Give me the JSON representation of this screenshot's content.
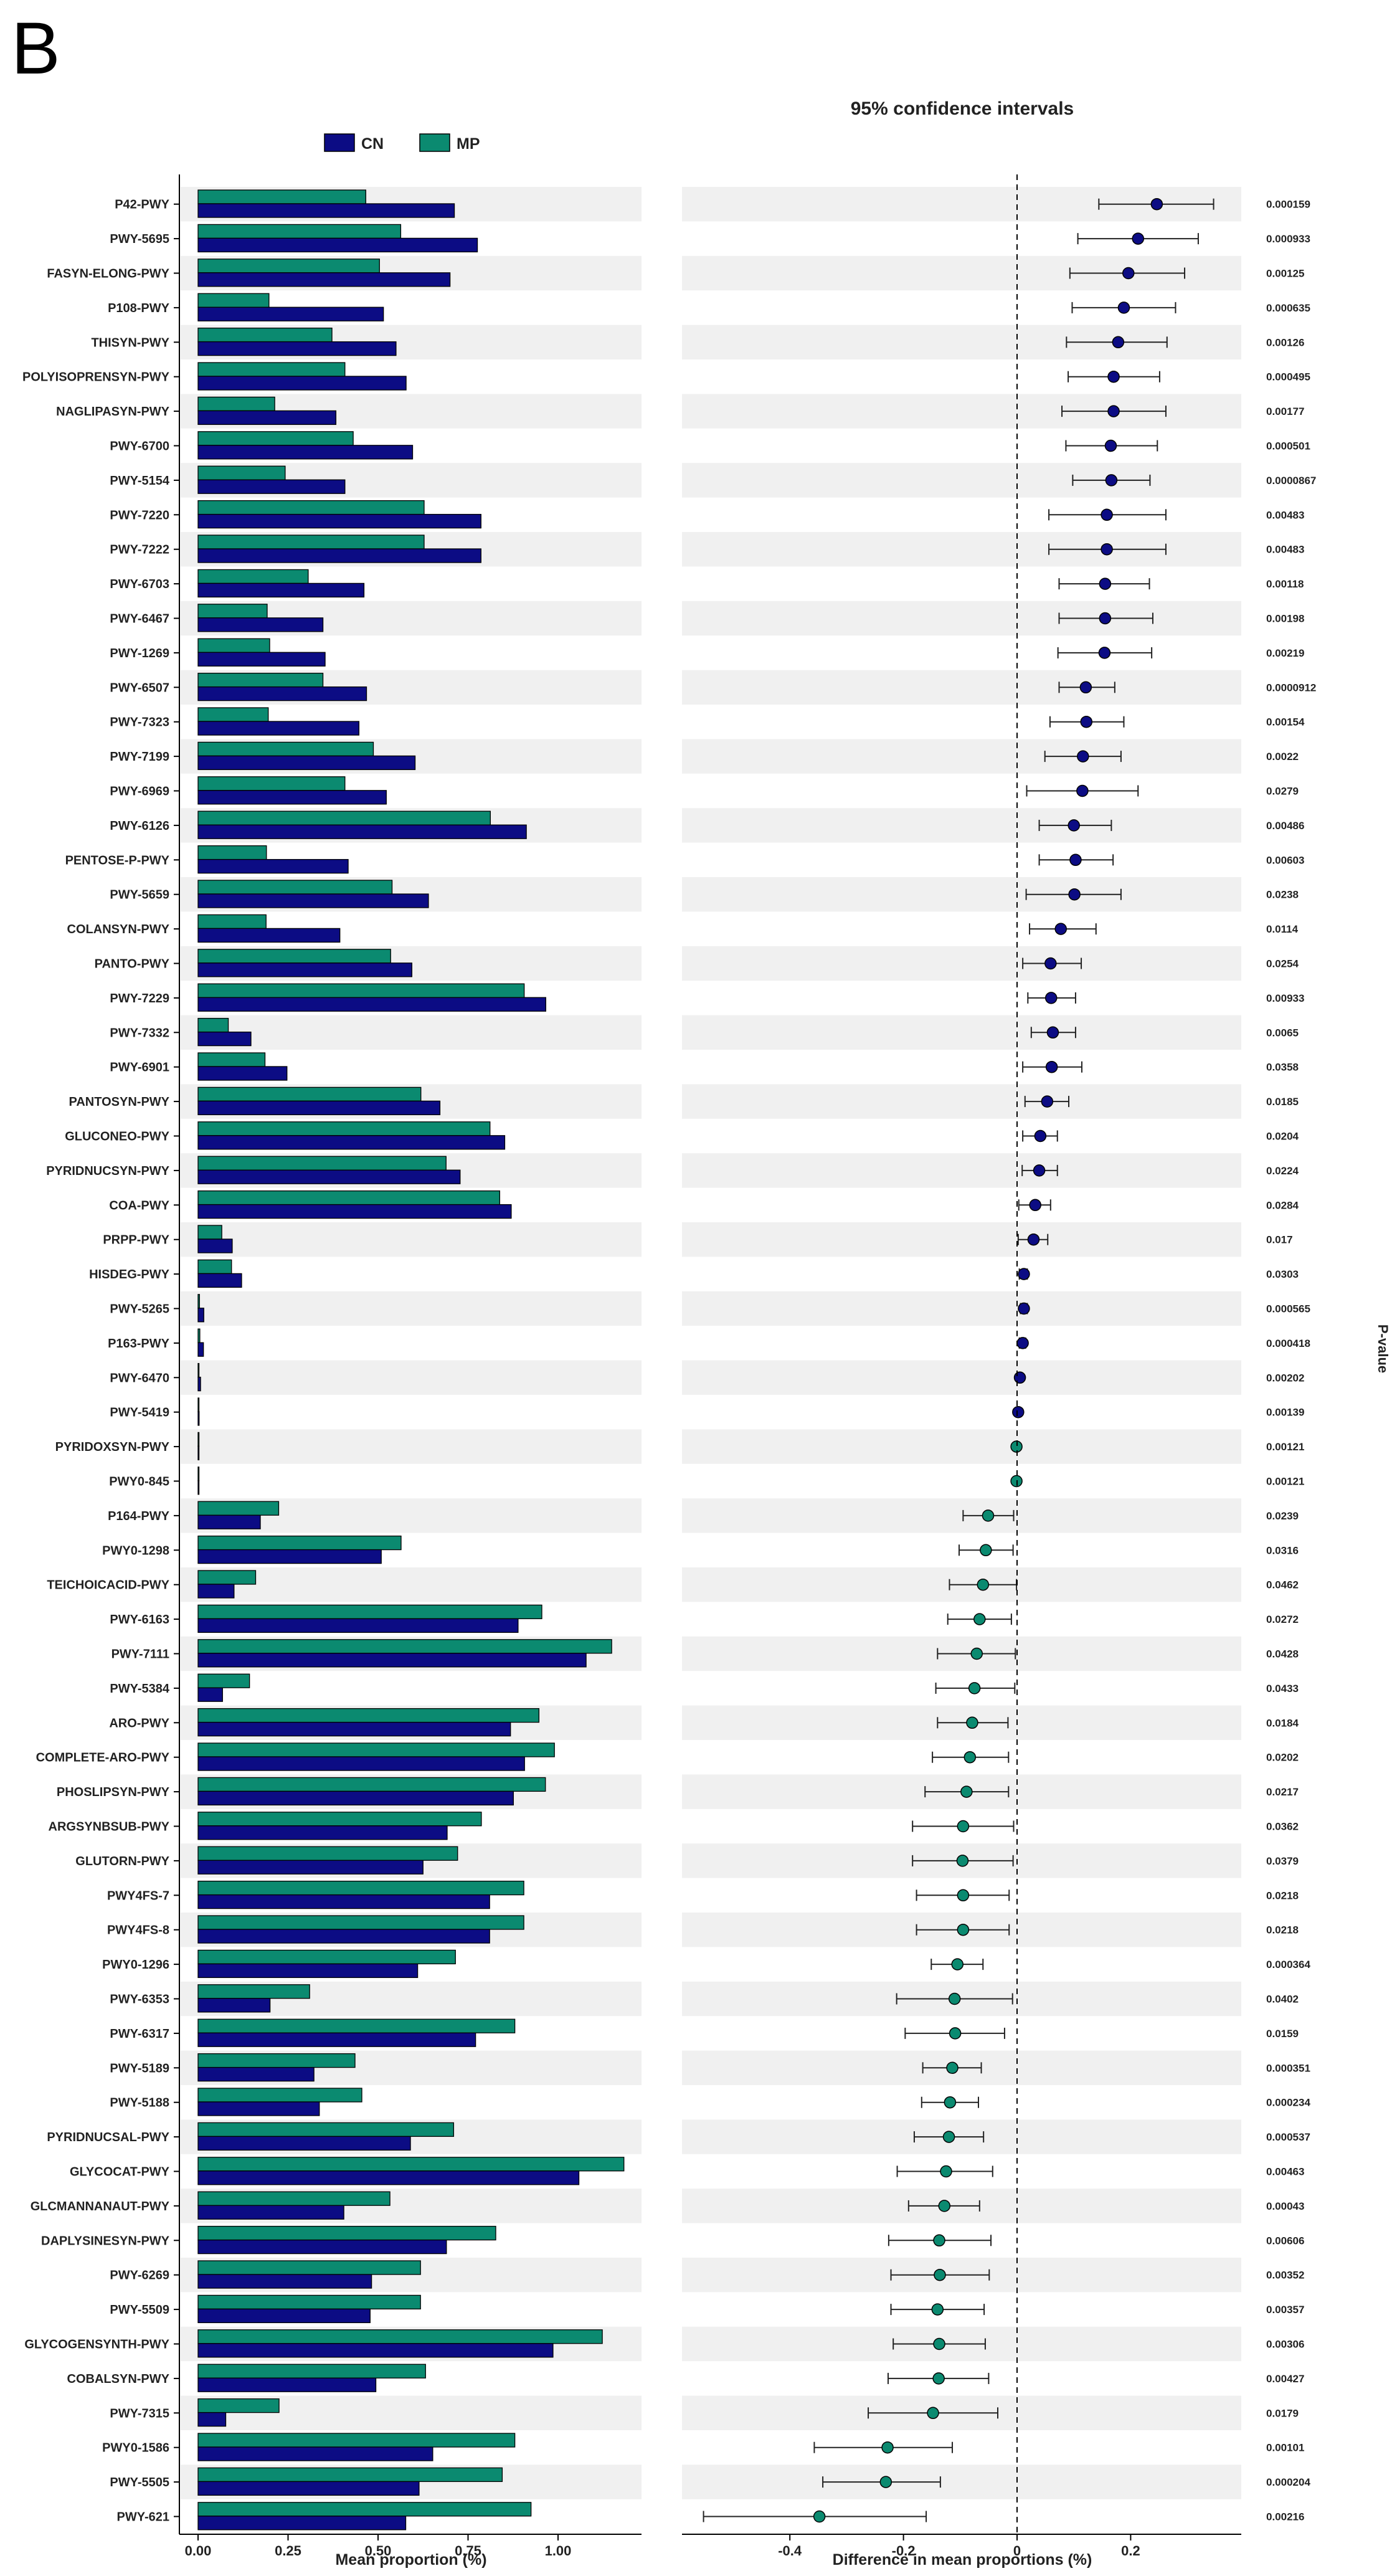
{
  "panel_letter": "B",
  "chart_data": [
    {
      "type": "bar",
      "orientation": "horizontal",
      "title": "",
      "xlabel": "Mean proportion (%)",
      "ylabel": "",
      "xlim": [
        0,
        1.2
      ],
      "xticks": [
        "0.00",
        "0.25",
        "0.50",
        "0.75",
        "1.00"
      ],
      "legend": {
        "position": "top",
        "entries": [
          {
            "name": "CN",
            "color": "#0c0c84"
          },
          {
            "name": "MP",
            "color": "#0b8a70"
          }
        ]
      },
      "categories": [
        "P42-PWY",
        "PWY-5695",
        "FASYN-ELONG-PWY",
        "P108-PWY",
        "THISYN-PWY",
        "POLYISOPRENSYN-PWY",
        "NAGLIPASYN-PWY",
        "PWY-6700",
        "PWY-5154",
        "PWY-7220",
        "PWY-7222",
        "PWY-6703",
        "PWY-6467",
        "PWY-1269",
        "PWY-6507",
        "PWY-7323",
        "PWY-7199",
        "PWY-6969",
        "PWY-6126",
        "PENTOSE-P-PWY",
        "PWY-5659",
        "COLANSYN-PWY",
        "PANTO-PWY",
        "PWY-7229",
        "PWY-7332",
        "PWY-6901",
        "PANTOSYN-PWY",
        "GLUCONEO-PWY",
        "PYRIDNUCSYN-PWY",
        "COA-PWY",
        "PRPP-PWY",
        "HISDEG-PWY",
        "PWY-5265",
        "P163-PWY",
        "PWY-6470",
        "PWY-5419",
        "PYRIDOXSYN-PWY",
        "PWY0-845",
        "P164-PWY",
        "PWY0-1298",
        "TEICHOICACID-PWY",
        "PWY-6163",
        "PWY-7111",
        "PWY-5384",
        "ARO-PWY",
        "COMPLETE-ARO-PWY",
        "PHOSLIPSYN-PWY",
        "ARGSYNBSUB-PWY",
        "GLUTORN-PWY",
        "PWY4FS-7",
        "PWY4FS-8",
        "PWY0-1296",
        "PWY-6353",
        "PWY-6317",
        "PWY-5189",
        "PWY-5188",
        "PYRIDNUCSAL-PWY",
        "GLYCOCAT-PWY",
        "GLCMANNANAUT-PWY",
        "DAPLYSINESYN-PWY",
        "PWY-6269",
        "PWY-5509",
        "GLYCOGENSYNTH-PWY",
        "COBALSYN-PWY",
        "PWY-7315",
        "PWY0-1586",
        "PWY-5505",
        "PWY-621"
      ],
      "series": [
        {
          "name": "MP",
          "color": "#0b8a70",
          "values": [
            0.466,
            0.563,
            0.504,
            0.197,
            0.372,
            0.408,
            0.213,
            0.431,
            0.242,
            0.628,
            0.628,
            0.306,
            0.192,
            0.199,
            0.347,
            0.195,
            0.487,
            0.408,
            0.812,
            0.19,
            0.539,
            0.189,
            0.535,
            0.906,
            0.084,
            0.186,
            0.619,
            0.811,
            0.689,
            0.838,
            0.066,
            0.093,
            0.004,
            0.005,
            0.002,
            0.001,
            0.002,
            0.002,
            0.224,
            0.564,
            0.16,
            0.955,
            1.149,
            0.143,
            0.947,
            0.99,
            0.965,
            0.787,
            0.721,
            0.905,
            0.905,
            0.715,
            0.31,
            0.88,
            0.436,
            0.455,
            0.71,
            1.183,
            0.533,
            0.827,
            0.618,
            0.618,
            1.123,
            0.632,
            0.225,
            0.88,
            0.845,
            0.925
          ]
        },
        {
          "name": "CN",
          "color": "#0c0c84",
          "values": [
            0.712,
            0.776,
            0.7,
            0.515,
            0.55,
            0.578,
            0.383,
            0.596,
            0.408,
            0.786,
            0.786,
            0.461,
            0.347,
            0.353,
            0.468,
            0.447,
            0.603,
            0.523,
            0.912,
            0.417,
            0.64,
            0.394,
            0.594,
            0.966,
            0.147,
            0.247,
            0.672,
            0.852,
            0.728,
            0.87,
            0.095,
            0.121,
            0.016,
            0.015,
            0.007,
            0.003,
            0.001,
            0.001,
            0.173,
            0.509,
            0.1,
            0.889,
            1.078,
            0.068,
            0.868,
            0.907,
            0.876,
            0.692,
            0.625,
            0.81,
            0.81,
            0.61,
            0.2,
            0.771,
            0.322,
            0.337,
            0.59,
            1.058,
            0.405,
            0.69,
            0.482,
            0.478,
            0.986,
            0.494,
            0.077,
            0.652,
            0.614,
            0.577
          ]
        }
      ]
    },
    {
      "type": "scatter",
      "subtype": "errorbar",
      "title": "95% confidence intervals",
      "xlabel": "Difference in mean proportions (%)",
      "ylabel": "P-value",
      "xlim": [
        -0.58,
        0.38
      ],
      "xticks": [
        "-0.4",
        "-0.2",
        "0",
        "0.2"
      ],
      "reference_line": 0,
      "categories": [
        "P42-PWY",
        "PWY-5695",
        "FASYN-ELONG-PWY",
        "P108-PWY",
        "THISYN-PWY",
        "POLYISOPRENSYN-PWY",
        "NAGLIPASYN-PWY",
        "PWY-6700",
        "PWY-5154",
        "PWY-7220",
        "PWY-7222",
        "PWY-6703",
        "PWY-6467",
        "PWY-1269",
        "PWY-6507",
        "PWY-7323",
        "PWY-7199",
        "PWY-6969",
        "PWY-6126",
        "PENTOSE-P-PWY",
        "PWY-5659",
        "COLANSYN-PWY",
        "PANTO-PWY",
        "PWY-7229",
        "PWY-7332",
        "PWY-6901",
        "PANTOSYN-PWY",
        "GLUCONEO-PWY",
        "PYRIDNUCSYN-PWY",
        "COA-PWY",
        "PRPP-PWY",
        "HISDEG-PWY",
        "PWY-5265",
        "P163-PWY",
        "PWY-6470",
        "PWY-5419",
        "PYRIDOXSYN-PWY",
        "PWY0-845",
        "P164-PWY",
        "PWY0-1298",
        "TEICHOICACID-PWY",
        "PWY-6163",
        "PWY-7111",
        "PWY-5384",
        "ARO-PWY",
        "COMPLETE-ARO-PWY",
        "PHOSLIPSYN-PWY",
        "ARGSYNBSUB-PWY",
        "GLUTORN-PWY",
        "PWY4FS-7",
        "PWY4FS-8",
        "PWY0-1296",
        "PWY-6353",
        "PWY-6317",
        "PWY-5189",
        "PWY-5188",
        "PYRIDNUCSAL-PWY",
        "GLYCOCAT-PWY",
        "GLCMANNANAUT-PWY",
        "DAPLYSINESYN-PWY",
        "PWY-6269",
        "PWY-5509",
        "GLYCOGENSYNTH-PWY",
        "COBALSYN-PWY",
        "PWY-7315",
        "PWY0-1586",
        "PWY-5505",
        "PWY-621"
      ],
      "diff": [
        0.246,
        0.213,
        0.196,
        0.188,
        0.178,
        0.17,
        0.17,
        0.165,
        0.166,
        0.158,
        0.158,
        0.155,
        0.155,
        0.154,
        0.121,
        0.122,
        0.116,
        0.115,
        0.1,
        0.103,
        0.101,
        0.077,
        0.059,
        0.06,
        0.063,
        0.061,
        0.053,
        0.041,
        0.039,
        0.032,
        0.029,
        0.012,
        0.012,
        0.01,
        0.005,
        0.002,
        -0.001,
        -0.001,
        -0.051,
        -0.055,
        -0.06,
        -0.066,
        -0.071,
        -0.075,
        -0.079,
        -0.083,
        -0.089,
        -0.095,
        -0.096,
        -0.095,
        -0.095,
        -0.105,
        -0.11,
        -0.109,
        -0.114,
        -0.118,
        -0.12,
        -0.125,
        -0.128,
        -0.137,
        -0.136,
        -0.14,
        -0.137,
        -0.138,
        -0.148,
        -0.228,
        -0.231,
        -0.348
      ],
      "ci_low": [
        0.144,
        0.107,
        0.093,
        0.097,
        0.087,
        0.09,
        0.079,
        0.086,
        0.098,
        0.056,
        0.056,
        0.074,
        0.074,
        0.072,
        0.074,
        0.058,
        0.049,
        0.017,
        0.039,
        0.039,
        0.016,
        0.022,
        0.01,
        0.019,
        0.025,
        0.01,
        0.014,
        0.01,
        0.009,
        0.003,
        0.002,
        0.004,
        0.006,
        0.004,
        0.002,
        0.001,
        -0.002,
        -0.002,
        -0.095,
        -0.102,
        -0.119,
        -0.122,
        -0.14,
        -0.143,
        -0.14,
        -0.149,
        -0.162,
        -0.184,
        -0.184,
        -0.177,
        -0.177,
        -0.151,
        -0.212,
        -0.197,
        -0.166,
        -0.168,
        -0.181,
        -0.211,
        -0.191,
        -0.226,
        -0.222,
        -0.222,
        -0.218,
        -0.227,
        -0.262,
        -0.357,
        -0.342,
        -0.552
      ],
      "ci_high": [
        0.346,
        0.319,
        0.295,
        0.279,
        0.264,
        0.251,
        0.262,
        0.247,
        0.234,
        0.262,
        0.262,
        0.233,
        0.239,
        0.237,
        0.172,
        0.188,
        0.183,
        0.213,
        0.166,
        0.169,
        0.183,
        0.139,
        0.113,
        0.103,
        0.103,
        0.114,
        0.091,
        0.071,
        0.071,
        0.059,
        0.054,
        0.018,
        0.018,
        0.015,
        0.008,
        0.003,
        0.0,
        0.0,
        -0.006,
        -0.007,
        -0.001,
        -0.01,
        -0.003,
        -0.004,
        -0.016,
        -0.015,
        -0.015,
        -0.006,
        -0.007,
        -0.014,
        -0.014,
        -0.06,
        -0.008,
        -0.022,
        -0.063,
        -0.068,
        -0.059,
        -0.043,
        -0.066,
        -0.046,
        -0.049,
        -0.058,
        -0.056,
        -0.05,
        -0.034,
        -0.114,
        -0.135,
        -0.16
      ],
      "p_values": [
        "0.000159",
        "0.000933",
        "0.00125",
        "0.000635",
        "0.00126",
        "0.000495",
        "0.00177",
        "0.000501",
        "0.0000867",
        "0.00483",
        "0.00483",
        "0.00118",
        "0.00198",
        "0.00219",
        "0.0000912",
        "0.00154",
        "0.0022",
        "0.0279",
        "0.00486",
        "0.00603",
        "0.0238",
        "0.0114",
        "0.0254",
        "0.00933",
        "0.0065",
        "0.0358",
        "0.0185",
        "0.0204",
        "0.0224",
        "0.0284",
        "0.017",
        "0.0303",
        "0.000565",
        "0.000418",
        "0.00202",
        "0.00139",
        "0.00121",
        "0.00121",
        "0.0239",
        "0.0316",
        "0.0462",
        "0.0272",
        "0.0428",
        "0.0433",
        "0.0184",
        "0.0202",
        "0.0217",
        "0.0362",
        "0.0379",
        "0.0218",
        "0.0218",
        "0.000364",
        "0.0402",
        "0.0159",
        "0.000351",
        "0.000234",
        "0.000537",
        "0.00463",
        "0.00043",
        "0.00606",
        "0.00352",
        "0.00357",
        "0.00306",
        "0.00427",
        "0.0179",
        "0.00101",
        "0.000204",
        "0.00216"
      ],
      "point_colors": {
        "positive": "#0c0c84",
        "negative": "#0b8a70"
      }
    }
  ]
}
